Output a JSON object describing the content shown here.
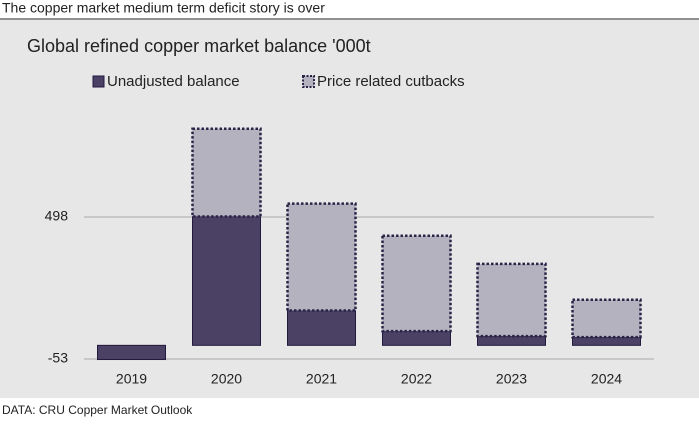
{
  "header": "The copper market medium term deficit story is over",
  "footer": "DATA: CRU Copper Market Outlook",
  "chart_data": {
    "type": "stacked_bar",
    "title": "Global refined copper market balance '000t",
    "categories": [
      "2019",
      "2020",
      "2021",
      "2022",
      "2023",
      "2024"
    ],
    "series": [
      {
        "name": "Unadjusted balance",
        "color": "#4a4165",
        "values": [
          -55,
          500,
          135,
          55,
          36,
          32
        ]
      },
      {
        "name": "Price related cutbacks",
        "color": "#b4b2bf",
        "values": [
          null,
          340,
          415,
          370,
          280,
          145
        ]
      }
    ],
    "ylim": [
      -110,
      880
    ],
    "yticks": [
      -53,
      498
    ],
    "grid": true,
    "legend": "top-left"
  }
}
